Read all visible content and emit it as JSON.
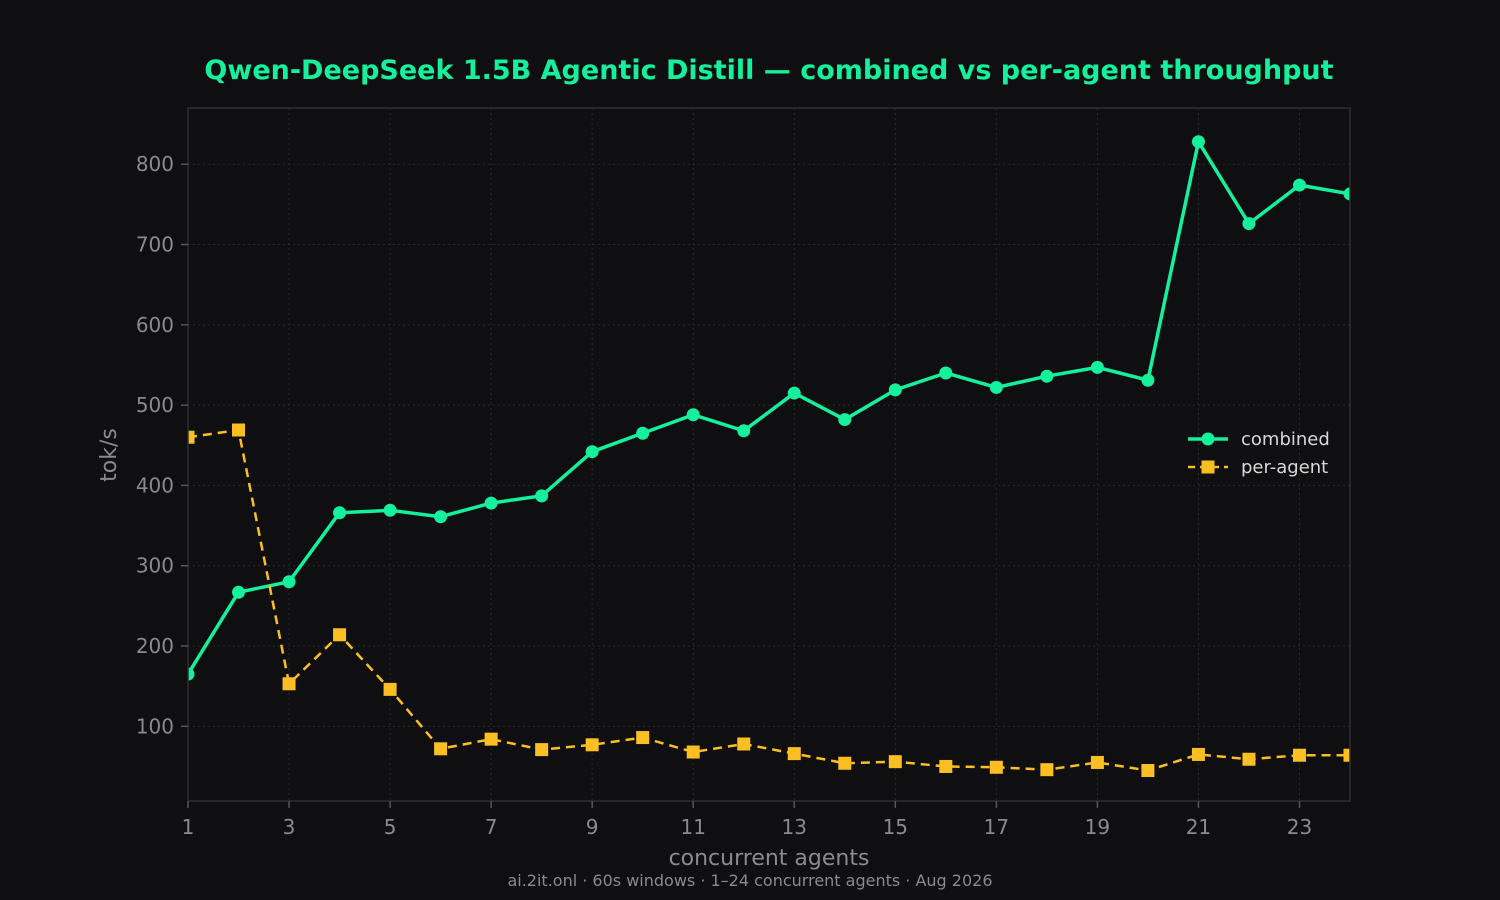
{
  "colors": {
    "background": "#0f0f11",
    "combined": "#14f09c",
    "per_agent": "#fbbf24",
    "title": "#14f09c",
    "grid": "#2a2a2a",
    "text": "#8a8a8a"
  },
  "footer": "ai.2it.onl · 60s windows · 1–24 concurrent agents · Aug 2026",
  "chart_data": {
    "type": "line",
    "title": "Qwen-DeepSeek 1.5B Agentic Distill — combined vs per-agent throughput",
    "xlabel": "concurrent agents",
    "ylabel": "tok/s",
    "xlim": [
      1,
      24
    ],
    "ylim": [
      7,
      870
    ],
    "x_ticks": [
      1,
      3,
      5,
      7,
      9,
      11,
      13,
      15,
      17,
      19,
      21,
      23
    ],
    "y_ticks": [
      100,
      200,
      300,
      400,
      500,
      600,
      700,
      800
    ],
    "grid": true,
    "legend_position": "right",
    "x": [
      1,
      2,
      3,
      4,
      5,
      6,
      7,
      8,
      9,
      10,
      11,
      12,
      13,
      14,
      15,
      16,
      17,
      18,
      19,
      20,
      21,
      22,
      23,
      24
    ],
    "series": [
      {
        "name": "combined",
        "style": "solid",
        "marker": "circle",
        "values": [
          165,
          267,
          280,
          366,
          369,
          361,
          378,
          387,
          442,
          465,
          488,
          468,
          515,
          482,
          519,
          540,
          522,
          536,
          547,
          531,
          828,
          726,
          774,
          763
        ]
      },
      {
        "name": "per-agent",
        "style": "dashed",
        "marker": "square",
        "values": [
          460,
          469,
          153,
          214,
          146,
          72,
          84,
          71,
          77,
          86,
          68,
          78,
          66,
          54,
          56,
          50,
          49,
          46,
          55,
          45,
          65,
          59,
          64,
          64
        ]
      }
    ]
  }
}
